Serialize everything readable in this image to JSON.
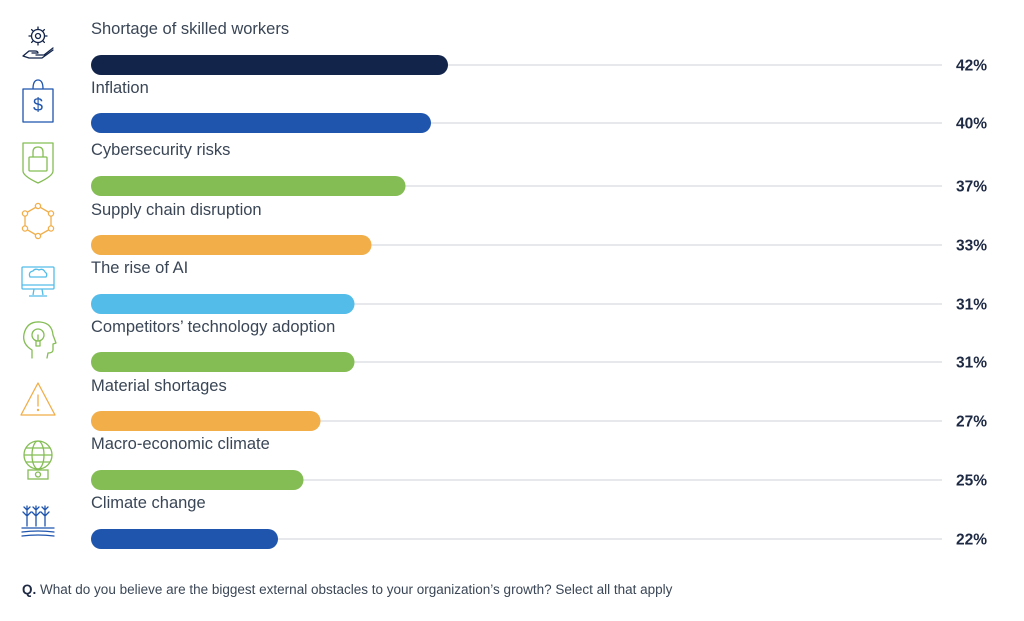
{
  "chart_data": {
    "type": "bar",
    "orientation": "horizontal",
    "categories": [
      "Shortage of skilled workers",
      "Inflation",
      "Cybersecurity risks",
      "Supply chain disruption",
      "The rise of AI",
      "Competitors’ technology adoption",
      "Material shortages",
      "Macro-economic climate",
      "Climate change"
    ],
    "values": [
      42,
      40,
      37,
      33,
      31,
      31,
      27,
      25,
      22
    ],
    "value_labels": [
      "42%",
      "40%",
      "37%",
      "33%",
      "31%",
      "31%",
      "27%",
      "25%",
      "22%"
    ],
    "bar_colors": [
      "#13244a",
      "#1f55ad",
      "#85bd55",
      "#f1ae49",
      "#53bce9",
      "#85bd55",
      "#f1ae49",
      "#85bd55",
      "#1f55ad"
    ],
    "icons": [
      "gear-hand-icon",
      "shopping-bag-dollar-icon",
      "shield-lock-icon",
      "network-hexagon-icon",
      "monitor-brain-icon",
      "head-lightbulb-icon",
      "warning-triangle-icon",
      "globe-money-icon",
      "plants-field-icon"
    ],
    "xlim": [
      0,
      100
    ],
    "track_color": "#e6e8ec",
    "grid": false,
    "legend": "none"
  },
  "question": {
    "prefix": "Q.",
    "text": "What do you believe are the biggest external obstacles to your organization’s growth? Select all that apply"
  }
}
